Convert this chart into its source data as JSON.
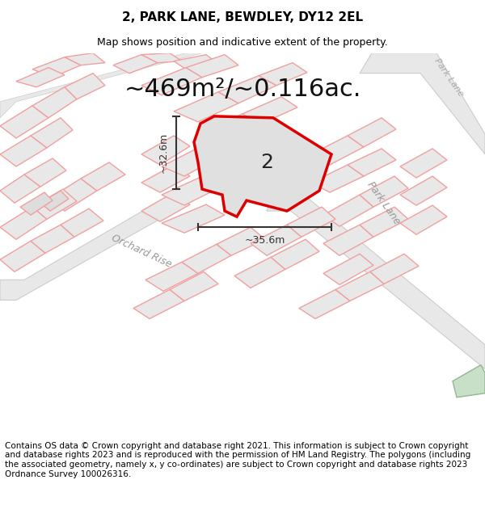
{
  "title": "2, PARK LANE, BEWDLEY, DY12 2EL",
  "subtitle": "Map shows position and indicative extent of the property.",
  "area_text": "~469m²/~0.116ac.",
  "dim_width": "~35.6m",
  "dim_height": "~32.6m",
  "property_label": "2",
  "street_label_park_lane_1": "Park Lane",
  "street_label_park_lane_2": "Park Lane",
  "street_label_orchard": "Orchard Rise",
  "footer": "Contains OS data © Crown copyright and database right 2021. This information is subject to Crown copyright and database rights 2023 and is reproduced with the permission of HM Land Registry. The polygons (including the associated geometry, namely x, y co-ordinates) are subject to Crown copyright and database rights 2023 Ordnance Survey 100026316.",
  "bg_color": "#ffffff",
  "map_bg": "#ffffff",
  "plot_fill": "#e8e8e8",
  "plot_edge_pink": "#f0a0a0",
  "road_color": "#cccccc",
  "highlight_fill": "#e0e0e0",
  "highlight_edge": "#dd0000",
  "dim_color": "#444444",
  "street_color": "#aaaaaa",
  "title_fontsize": 11,
  "subtitle_fontsize": 9,
  "area_fontsize": 22,
  "label_fontsize": 18,
  "footer_fontsize": 7.5
}
